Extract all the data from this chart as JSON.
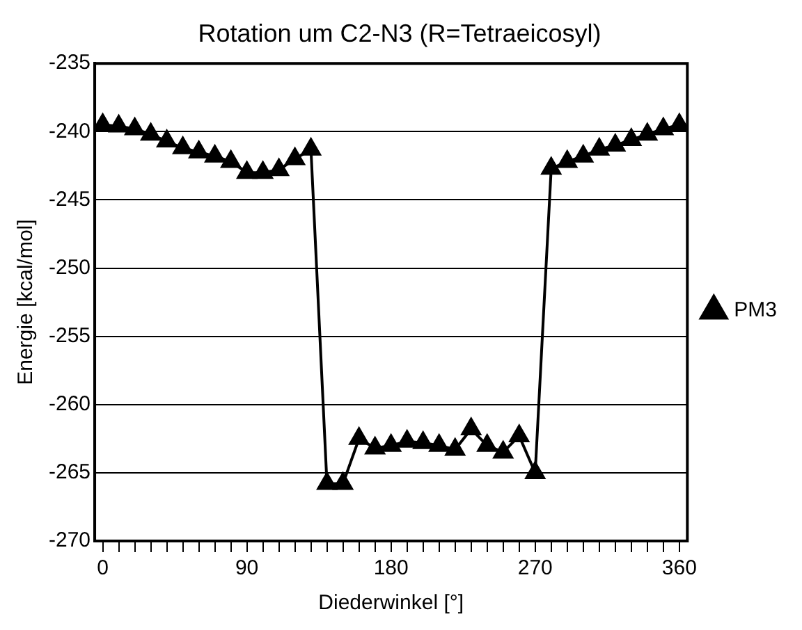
{
  "chart_data": {
    "type": "line",
    "title": "Rotation um C2-N3 (R=Tetraeicosyl)",
    "xlabel": "Diederwinkel [°]",
    "ylabel": "Energie [kcal/mol]",
    "x": [
      0,
      10,
      20,
      30,
      40,
      50,
      60,
      70,
      80,
      90,
      100,
      110,
      120,
      130,
      140,
      150,
      160,
      170,
      180,
      190,
      200,
      210,
      220,
      230,
      240,
      250,
      260,
      270,
      280,
      290,
      300,
      310,
      320,
      330,
      340,
      350,
      360
    ],
    "series": [
      {
        "name": "PM3",
        "color": "#000000",
        "values": [
          -239.5,
          -239.6,
          -239.8,
          -240.2,
          -240.7,
          -241.2,
          -241.5,
          -241.8,
          -242.2,
          -243,
          -243,
          -242.8,
          -242,
          -241.3,
          -265.8,
          -265.8,
          -262.5,
          -263.2,
          -263,
          -262.7,
          -262.8,
          -263,
          -263.3,
          -261.8,
          -263,
          -263.5,
          -262.3,
          -265,
          -242.7,
          -242.2,
          -241.8,
          -241.3,
          -241,
          -240.6,
          -240.2,
          -239.8,
          -239.5
        ]
      }
    ],
    "xlim": [
      -5,
      365
    ],
    "xticks": [
      0,
      {
        "value": 10,
        "label": null
      },
      {
        "value": 20,
        "label": null
      },
      {
        "value": 30,
        "label": null
      },
      {
        "value": 40,
        "label": null
      },
      {
        "value": 50,
        "label": null
      },
      {
        "value": 60,
        "label": null
      },
      {
        "value": 70,
        "label": null
      },
      {
        "value": 80,
        "label": null
      },
      90,
      {
        "value": 100,
        "label": null
      },
      {
        "value": 110,
        "label": null
      },
      {
        "value": 120,
        "label": null
      },
      {
        "value": 130,
        "label": null
      },
      {
        "value": 140,
        "label": null
      },
      {
        "value": 150,
        "label": null
      },
      {
        "value": 160,
        "label": null
      },
      {
        "value": 170,
        "label": null
      },
      180,
      {
        "value": 190,
        "label": null
      },
      {
        "value": 200,
        "label": null
      },
      {
        "value": 210,
        "label": null
      },
      {
        "value": 220,
        "label": null
      },
      {
        "value": 230,
        "label": null
      },
      {
        "value": 240,
        "label": null
      },
      {
        "value": 250,
        "label": null
      },
      {
        "value": 260,
        "label": null
      },
      270,
      {
        "value": 280,
        "label": null
      },
      {
        "value": 290,
        "label": null
      },
      {
        "value": 300,
        "label": null
      },
      {
        "value": 310,
        "label": null
      },
      {
        "value": 320,
        "label": null
      },
      {
        "value": 330,
        "label": null
      },
      {
        "value": 340,
        "label": null
      },
      {
        "value": 350,
        "label": null
      },
      360
    ],
    "ylim": [
      -270,
      -235
    ],
    "yticks": [
      -270,
      -265,
      -260,
      -255,
      -250,
      -245,
      -240,
      -235
    ],
    "grid": "y",
    "legend": "right",
    "marker": "triangle",
    "line_style": "solid"
  }
}
